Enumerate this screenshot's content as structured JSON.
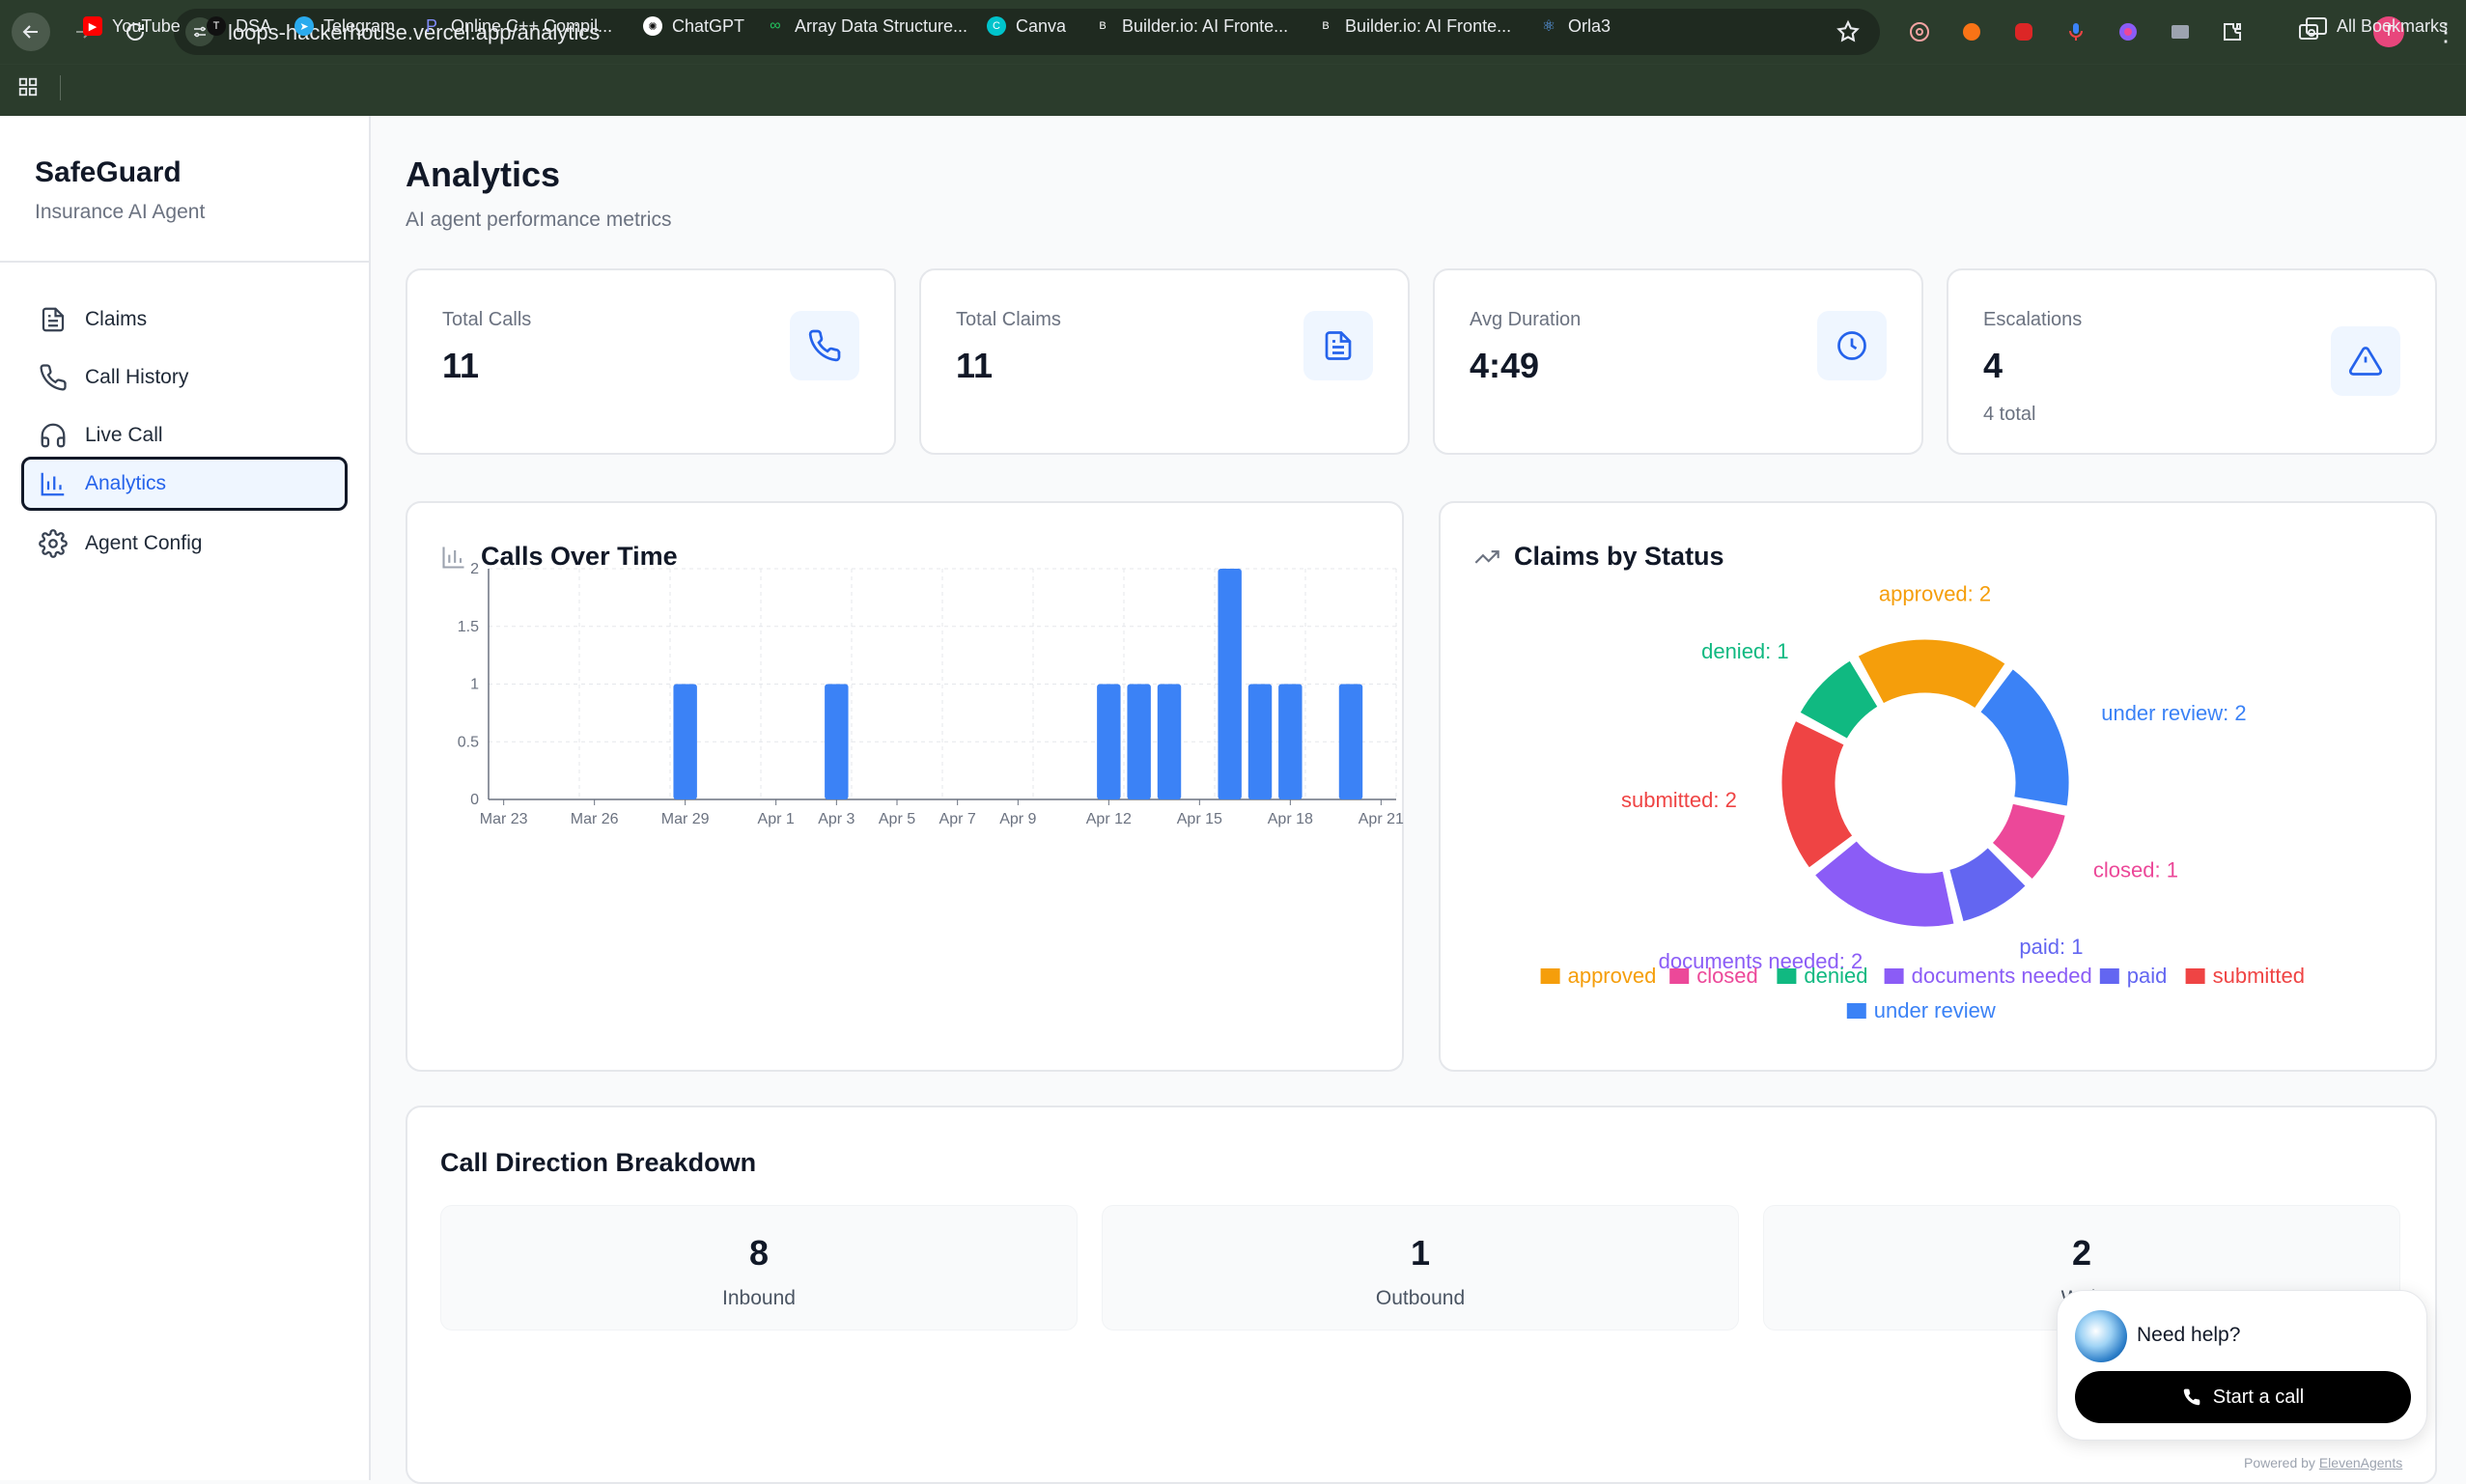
{
  "browser": {
    "url": "loops-hackerhouse.vercel.app/analytics",
    "profile_initial": "T",
    "bookmarks": [
      "YouTube",
      "DSA",
      "Telegram",
      "Online C++ Compil...",
      "ChatGPT",
      "Array Data Structure...",
      "Canva",
      "Builder.io: AI Fronte...",
      "Builder.io: AI Fronte...",
      "Orla3"
    ],
    "all_bookmarks": "All Bookmarks"
  },
  "sidebar": {
    "title": "SafeGuard",
    "subtitle": "Insurance AI Agent",
    "items": [
      {
        "label": "Claims",
        "icon": "file-text-icon"
      },
      {
        "label": "Call History",
        "icon": "phone-icon"
      },
      {
        "label": "Live Call",
        "icon": "headphones-icon"
      },
      {
        "label": "Analytics",
        "icon": "bar-chart-icon",
        "active": true
      },
      {
        "label": "Agent Config",
        "icon": "gear-icon"
      }
    ]
  },
  "page": {
    "title": "Analytics",
    "subtitle": "AI agent performance metrics"
  },
  "stats": [
    {
      "label": "Total Calls",
      "value": "11",
      "note": "",
      "icon": "phone-icon"
    },
    {
      "label": "Total Claims",
      "value": "11",
      "note": "",
      "icon": "file-text-icon"
    },
    {
      "label": "Avg Duration",
      "value": "4:49",
      "note": "",
      "icon": "clock-icon"
    },
    {
      "label": "Escalations",
      "value": "4",
      "note": "4 total",
      "icon": "alert-triangle-icon"
    }
  ],
  "calls_panel": {
    "title": "Calls Over Time"
  },
  "claims_panel": {
    "title": "Claims by Status"
  },
  "chart_data": [
    {
      "type": "bar",
      "title": "Calls Over Time",
      "x": [
        "Mar 23",
        "Mar 24",
        "Mar 25",
        "Mar 26",
        "Mar 27",
        "Mar 28",
        "Mar 29",
        "Mar 30",
        "Mar 31",
        "Apr 1",
        "Apr 2",
        "Apr 3",
        "Apr 4",
        "Apr 5",
        "Apr 6",
        "Apr 7",
        "Apr 8",
        "Apr 9",
        "Apr 10",
        "Apr 11",
        "Apr 12",
        "Apr 13",
        "Apr 14",
        "Apr 15",
        "Apr 16",
        "Apr 17",
        "Apr 18",
        "Apr 19",
        "Apr 20",
        "Apr 21"
      ],
      "values": [
        0,
        0,
        0,
        0,
        0,
        0,
        1,
        0,
        0,
        0,
        0,
        1,
        0,
        0,
        0,
        0,
        0,
        0,
        0,
        0,
        1,
        1,
        1,
        0,
        2,
        1,
        1,
        0,
        1,
        0
      ],
      "tick_labels": [
        "Mar 23",
        "Mar 26",
        "Mar 29",
        "Apr 1",
        "Apr 3",
        "Apr 5",
        "Apr 7",
        "Apr 9",
        "Apr 12",
        "Apr 15",
        "Apr 18",
        "Apr 21"
      ],
      "yticks": [
        "0",
        "0.5",
        "1",
        "1.5",
        "2"
      ],
      "ylim": [
        0,
        2
      ],
      "grid": true,
      "color": "#3b82f6"
    },
    {
      "type": "pie",
      "title": "Claims by Status",
      "donut": true,
      "slices": [
        {
          "label": "approved",
          "value": 2,
          "color": "#f59e0b"
        },
        {
          "label": "under review",
          "value": 2,
          "color": "#3b82f6"
        },
        {
          "label": "closed",
          "value": 1,
          "color": "#ec4899"
        },
        {
          "label": "paid",
          "value": 1,
          "color": "#6366f1"
        },
        {
          "label": "documents needed",
          "value": 2,
          "color": "#8b5cf6"
        },
        {
          "label": "submitted",
          "value": 2,
          "color": "#ef4444"
        },
        {
          "label": "denied",
          "value": 1,
          "color": "#10b981"
        }
      ],
      "legend": [
        "approved",
        "closed",
        "denied",
        "documents needed",
        "paid",
        "submitted",
        "under review"
      ],
      "legend_position": "bottom"
    }
  ],
  "direction": {
    "title": "Call Direction Breakdown",
    "items": [
      {
        "value": "8",
        "label": "Inbound"
      },
      {
        "value": "1",
        "label": "Outbound"
      },
      {
        "value": "2",
        "label": "Web"
      }
    ]
  },
  "help_widget": {
    "text": "Need help?",
    "button": "Start a call",
    "powered_prefix": "Powered by",
    "powered_link": "ElevenAgents"
  }
}
